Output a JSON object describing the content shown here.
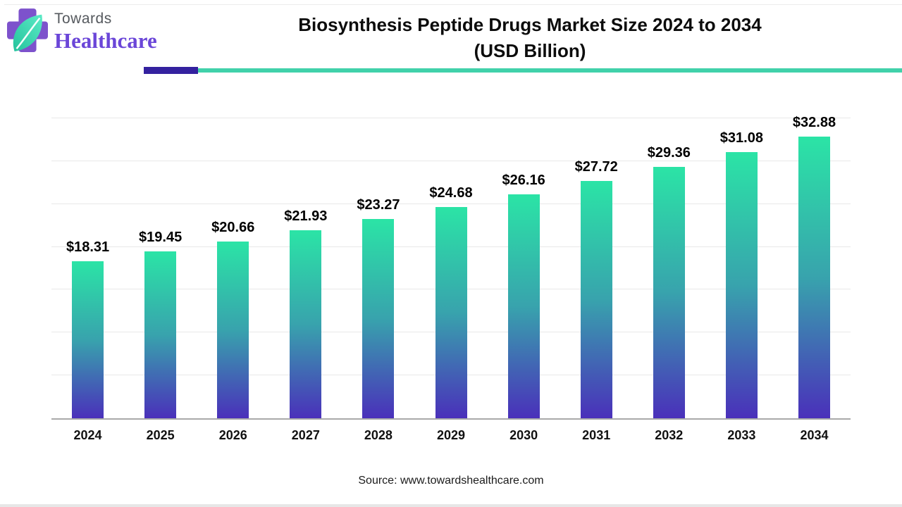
{
  "header": {
    "logo_line1": "Towards",
    "logo_line2": "Healthcare",
    "title_line1": "Biosynthesis Peptide Drugs Market Size 2024 to 2034",
    "title_line2": "(USD Billion)"
  },
  "chart_data": {
    "type": "bar",
    "title": "Biosynthesis Peptide Drugs Market Size 2024 to 2034 (USD Billion)",
    "categories": [
      "2024",
      "2025",
      "2026",
      "2027",
      "2028",
      "2029",
      "2030",
      "2031",
      "2032",
      "2033",
      "2034"
    ],
    "values": [
      18.31,
      19.45,
      20.66,
      21.93,
      23.27,
      24.68,
      26.16,
      27.72,
      29.36,
      31.08,
      32.88
    ],
    "labels": [
      "$18.31",
      "$19.45",
      "$20.66",
      "$21.93",
      "$23.27",
      "$24.68",
      "$26.16",
      "$27.72",
      "$29.36",
      "$31.08",
      "$32.88"
    ],
    "xlabel": "",
    "ylabel": "",
    "ylim": [
      0,
      35
    ],
    "gridline_step": 5,
    "grid": true,
    "legend": "none",
    "bar_gradient_top": "#2be4a6",
    "bar_gradient_bottom": "#4a30ba"
  },
  "footer": {
    "source": "Source: www.towardshealthcare.com"
  },
  "colors": {
    "divider_purple": "#34219f",
    "divider_teal": "#41d1aa",
    "logo_purple": "#6b46d8",
    "logo_gray": "#55595e",
    "cross_purple": "#7d52cc",
    "leaf_teal_light": "#5ceac6",
    "leaf_teal_dark": "#24c39c",
    "axis_line": "#a9a9a9",
    "gridline": "#e8e8e8",
    "label_text": "#000000"
  }
}
